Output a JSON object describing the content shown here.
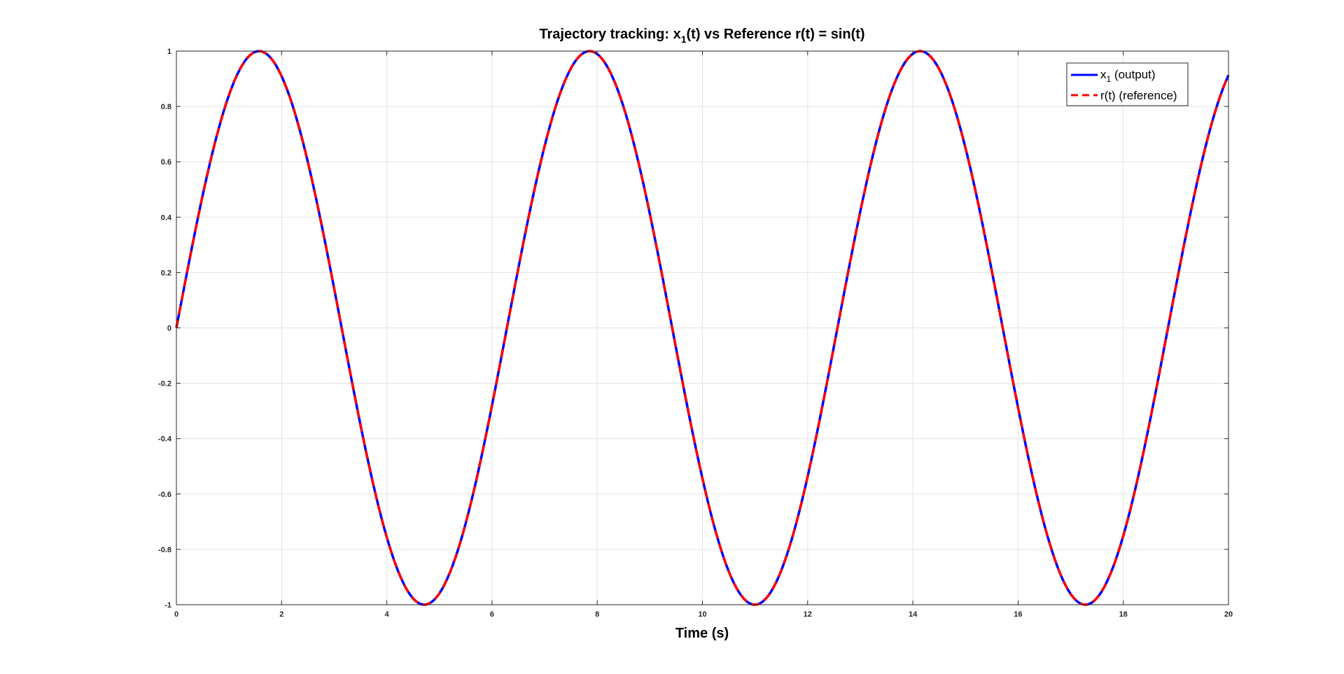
{
  "chart_data": {
    "type": "line",
    "title": {
      "prefix": "Trajectory tracking: x",
      "subscript": "1",
      "suffix": "(t) vs Reference r(t) = sin(t)"
    },
    "xlabel": "Time (s)",
    "ylabel": "",
    "xlim": [
      0,
      20
    ],
    "ylim": [
      -1,
      1
    ],
    "xticks": [
      0,
      2,
      4,
      6,
      8,
      10,
      12,
      14,
      16,
      18,
      20
    ],
    "xtick_labels": [
      "0",
      "2",
      "4",
      "6",
      "8",
      "10",
      "12",
      "14",
      "16",
      "18",
      "20"
    ],
    "yticks": [
      -1,
      -0.8,
      -0.6,
      -0.4,
      -0.2,
      0,
      0.2,
      0.4,
      0.6,
      0.8,
      1
    ],
    "ytick_labels": [
      "-1",
      "-0.8",
      "-0.6",
      "-0.4",
      "-0.2",
      "0",
      "0.2",
      "0.4",
      "0.6",
      "0.8",
      "1"
    ],
    "grid": true,
    "legend_position": "top-right",
    "series": [
      {
        "legend_main": "x",
        "legend_sub": "1",
        "legend_rest": " (output)",
        "color": "#0000ff",
        "style": "solid",
        "function": "sin(t)",
        "x_start": 0,
        "x_end": 20,
        "samples": 401
      },
      {
        "legend_main": "r(t) (reference)",
        "legend_sub": "",
        "legend_rest": "",
        "color": "#ff0000",
        "style": "dashed",
        "function": "sin(t)",
        "x_start": 0,
        "x_end": 20,
        "samples": 401
      }
    ]
  }
}
